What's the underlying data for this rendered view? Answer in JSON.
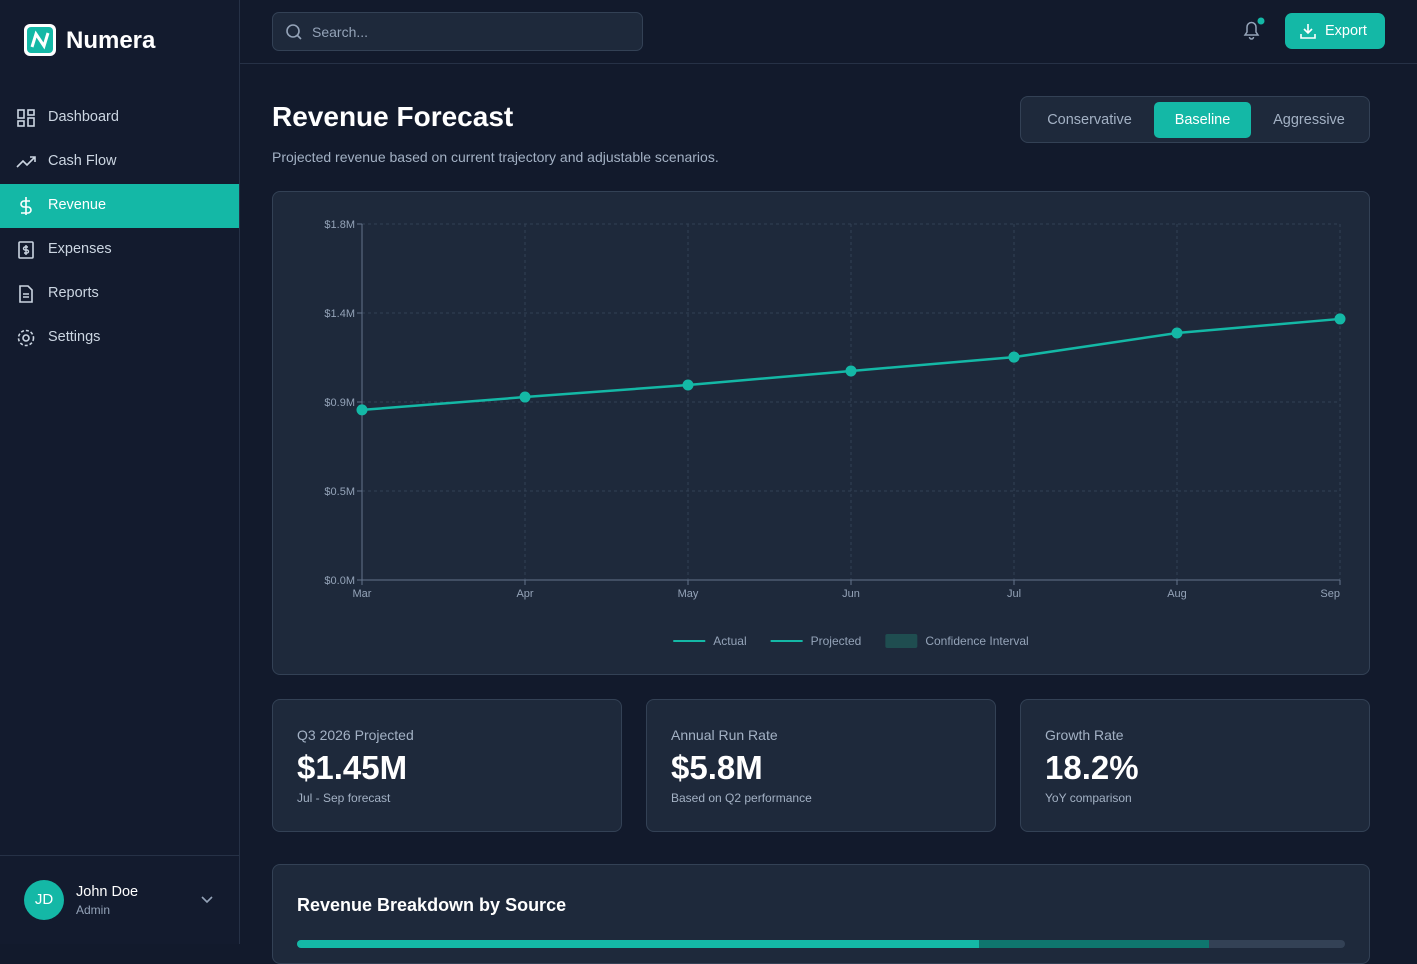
{
  "sidebar": {
    "brand": "Numera",
    "nav": [
      "Dashboard",
      "Cash Flow",
      "Revenue",
      "Expenses",
      "Reports",
      "Settings"
    ],
    "active_index": 2,
    "user": {
      "initials": "JD",
      "name": "John Doe",
      "role": "Admin"
    }
  },
  "topbar": {
    "search_placeholder": "Search...",
    "export": "Export"
  },
  "header": {
    "title": "Revenue Forecast",
    "subtitle": "Projected revenue based on current trajectory and adjustable scenarios.",
    "scenarios": [
      "Conservative",
      "Baseline",
      "Aggressive"
    ],
    "active_scenario": 1
  },
  "chart_data": {
    "type": "line",
    "categories": [
      "Mar",
      "Apr",
      "May",
      "Jun",
      "Jul",
      "Aug",
      "Sep"
    ],
    "series": [
      {
        "name": "Actual",
        "color": "#14b8a6",
        "style": "line",
        "values": [
          0.86,
          0.925,
          0.986,
          1.057,
          1.127,
          null,
          null
        ]
      },
      {
        "name": "Projected",
        "color": "#14b8a6",
        "style": "line",
        "values": [
          null,
          null,
          null,
          null,
          1.127,
          1.249,
          1.32
        ]
      },
      {
        "name": "Confidence Interval",
        "color": "#1f4d50",
        "style": "band",
        "values": [
          null,
          null,
          null,
          null,
          null,
          null,
          null
        ]
      }
    ],
    "ylim": [
      0,
      1.8
    ],
    "yticks": [
      {
        "value": 0,
        "label": "$0.0M"
      },
      {
        "value": 0.45,
        "label": "$0.5M"
      },
      {
        "value": 0.9,
        "label": "$0.9M"
      },
      {
        "value": 1.35,
        "label": "$1.4M"
      },
      {
        "value": 1.8,
        "label": "$1.8M"
      }
    ],
    "grid": true
  },
  "kpis": [
    {
      "label": "Q3 2026 Projected",
      "value": "$1.45M",
      "note": "Jul - Sep forecast"
    },
    {
      "label": "Annual Run Rate",
      "value": "$5.8M",
      "note": "Based on Q2 performance"
    },
    {
      "label": "Growth Rate",
      "value": "18.2%",
      "note": "YoY comparison"
    }
  ],
  "breakdown": {
    "title": "Revenue Breakdown by Source"
  }
}
